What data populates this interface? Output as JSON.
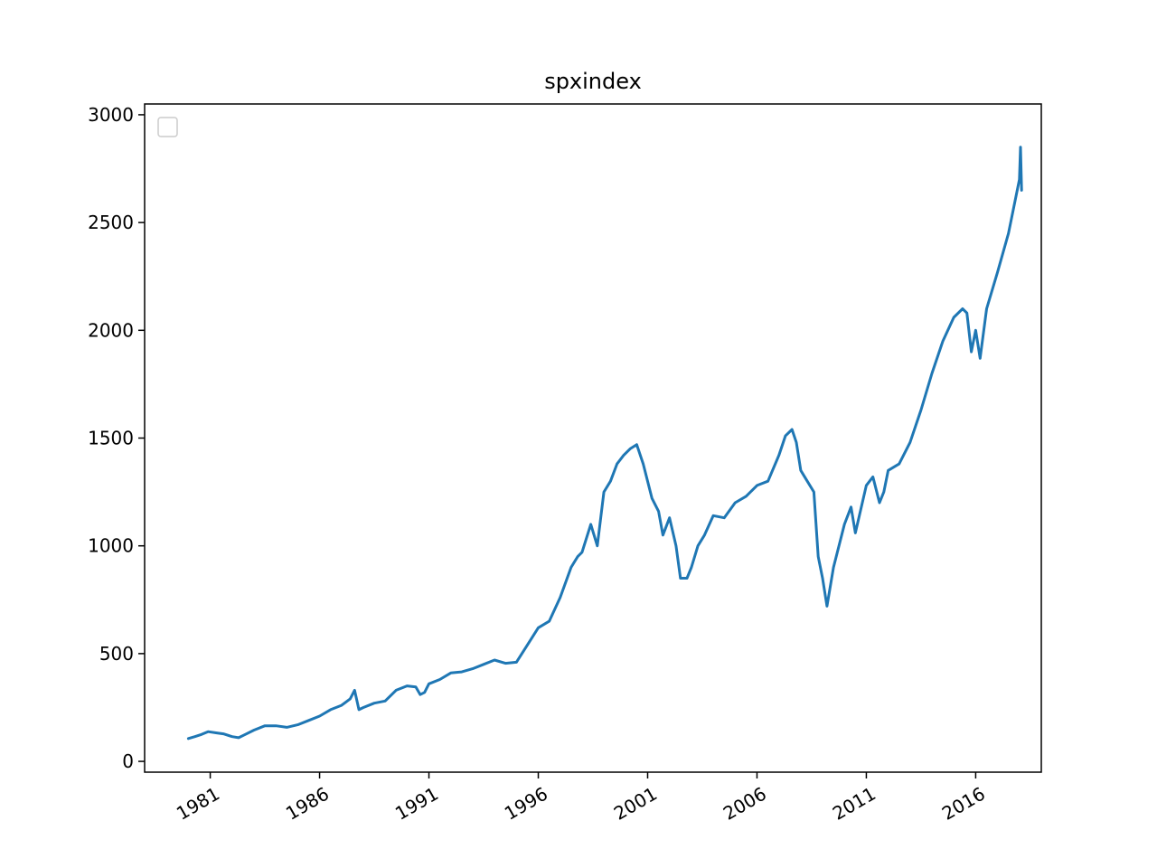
{
  "chart_data": {
    "type": "line",
    "title": "spxindex",
    "xlabel": "",
    "ylabel": "",
    "xlim": [
      1978.0,
      2019.0
    ],
    "ylim": [
      -50,
      3050
    ],
    "x_ticks": [
      1981,
      1986,
      1991,
      1996,
      2001,
      2006,
      2011,
      2016
    ],
    "x_tick_labels": [
      "1981",
      "1986",
      "1991",
      "1996",
      "2001",
      "2006",
      "2011",
      "2016"
    ],
    "y_ticks": [
      0,
      500,
      1000,
      1500,
      2000,
      2500,
      3000
    ],
    "y_tick_labels": [
      "0",
      "500",
      "1000",
      "1500",
      "2000",
      "2500",
      "3000"
    ],
    "grid": false,
    "legend": {
      "placement": "upper-left",
      "entries": []
    },
    "series": [
      {
        "color": "#1f77b4",
        "x": [
          1980.0,
          1980.3,
          1980.6,
          1980.9,
          1981.3,
          1981.6,
          1982.0,
          1982.3,
          1982.6,
          1983.0,
          1983.5,
          1984.0,
          1984.5,
          1985.0,
          1985.5,
          1986.0,
          1986.5,
          1987.0,
          1987.4,
          1987.6,
          1987.8,
          1988.0,
          1988.5,
          1989.0,
          1989.5,
          1990.0,
          1990.4,
          1990.6,
          1990.8,
          1991.0,
          1991.5,
          1992.0,
          1992.5,
          1993.0,
          1993.5,
          1994.0,
          1994.5,
          1995.0,
          1995.5,
          1996.0,
          1996.5,
          1997.0,
          1997.5,
          1997.8,
          1998.0,
          1998.4,
          1998.7,
          1999.0,
          1999.3,
          1999.6,
          1999.9,
          2000.2,
          2000.5,
          2000.8,
          2001.2,
          2001.5,
          2001.7,
          2002.0,
          2002.3,
          2002.5,
          2002.8,
          2003.0,
          2003.3,
          2003.6,
          2004.0,
          2004.5,
          2005.0,
          2005.5,
          2006.0,
          2006.5,
          2007.0,
          2007.3,
          2007.6,
          2007.8,
          2008.0,
          2008.3,
          2008.6,
          2008.8,
          2009.0,
          2009.2,
          2009.5,
          2010.0,
          2010.3,
          2010.5,
          2011.0,
          2011.3,
          2011.6,
          2011.8,
          2012.0,
          2012.5,
          2013.0,
          2013.5,
          2014.0,
          2014.5,
          2015.0,
          2015.4,
          2015.6,
          2015.8,
          2016.0,
          2016.2,
          2016.5,
          2017.0,
          2017.5,
          2018.0,
          2018.05,
          2018.1
        ],
        "y": [
          106,
          115,
          125,
          138,
          132,
          128,
          115,
          110,
          125,
          145,
          165,
          165,
          158,
          170,
          190,
          210,
          240,
          260,
          290,
          330,
          240,
          250,
          270,
          280,
          330,
          350,
          345,
          310,
          320,
          360,
          380,
          410,
          415,
          430,
          450,
          470,
          455,
          460,
          540,
          620,
          650,
          760,
          900,
          950,
          970,
          1100,
          1000,
          1250,
          1300,
          1380,
          1420,
          1450,
          1470,
          1380,
          1220,
          1160,
          1050,
          1130,
          1000,
          850,
          850,
          900,
          1000,
          1050,
          1140,
          1130,
          1200,
          1230,
          1280,
          1300,
          1420,
          1510,
          1540,
          1480,
          1350,
          1300,
          1250,
          950,
          850,
          720,
          900,
          1100,
          1180,
          1060,
          1280,
          1320,
          1200,
          1250,
          1350,
          1380,
          1480,
          1630,
          1800,
          1950,
          2060,
          2100,
          2080,
          1900,
          2000,
          1870,
          2100,
          2270,
          2450,
          2700,
          2850,
          2650
        ]
      }
    ]
  }
}
